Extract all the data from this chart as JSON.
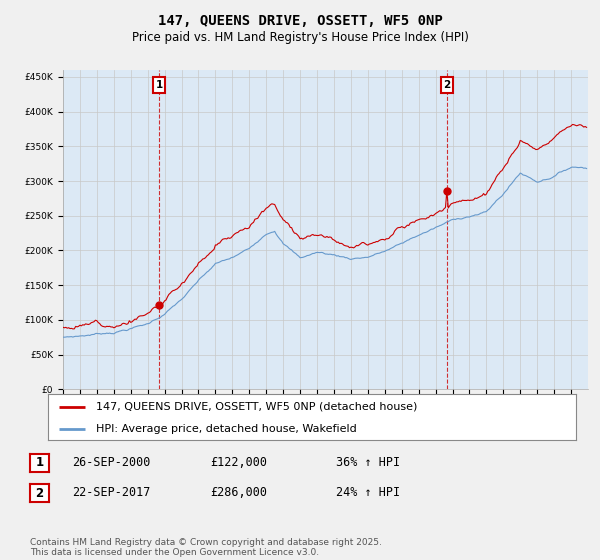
{
  "title": "147, QUEENS DRIVE, OSSETT, WF5 0NP",
  "subtitle": "Price paid vs. HM Land Registry's House Price Index (HPI)",
  "ylim": [
    0,
    460000
  ],
  "yticks": [
    0,
    50000,
    100000,
    150000,
    200000,
    250000,
    300000,
    350000,
    400000,
    450000
  ],
  "sale1_year_idx": 68,
  "sale1_price": 122000,
  "sale2_year_idx": 272,
  "sale2_price": 286000,
  "line_color_property": "#cc0000",
  "line_color_hpi": "#6699cc",
  "legend_property": "147, QUEENS DRIVE, OSSETT, WF5 0NP (detached house)",
  "legend_hpi": "HPI: Average price, detached house, Wakefield",
  "table_rows": [
    {
      "num": "1",
      "date": "26-SEP-2000",
      "price": "£122,000",
      "change": "36% ↑ HPI"
    },
    {
      "num": "2",
      "date": "22-SEP-2017",
      "price": "£286,000",
      "change": "24% ↑ HPI"
    }
  ],
  "footer": "Contains HM Land Registry data © Crown copyright and database right 2025.\nThis data is licensed under the Open Government Licence v3.0.",
  "background_color": "#f0f0f0",
  "plot_background": "#dce9f5",
  "plot_bg_outside": "#ffffff"
}
